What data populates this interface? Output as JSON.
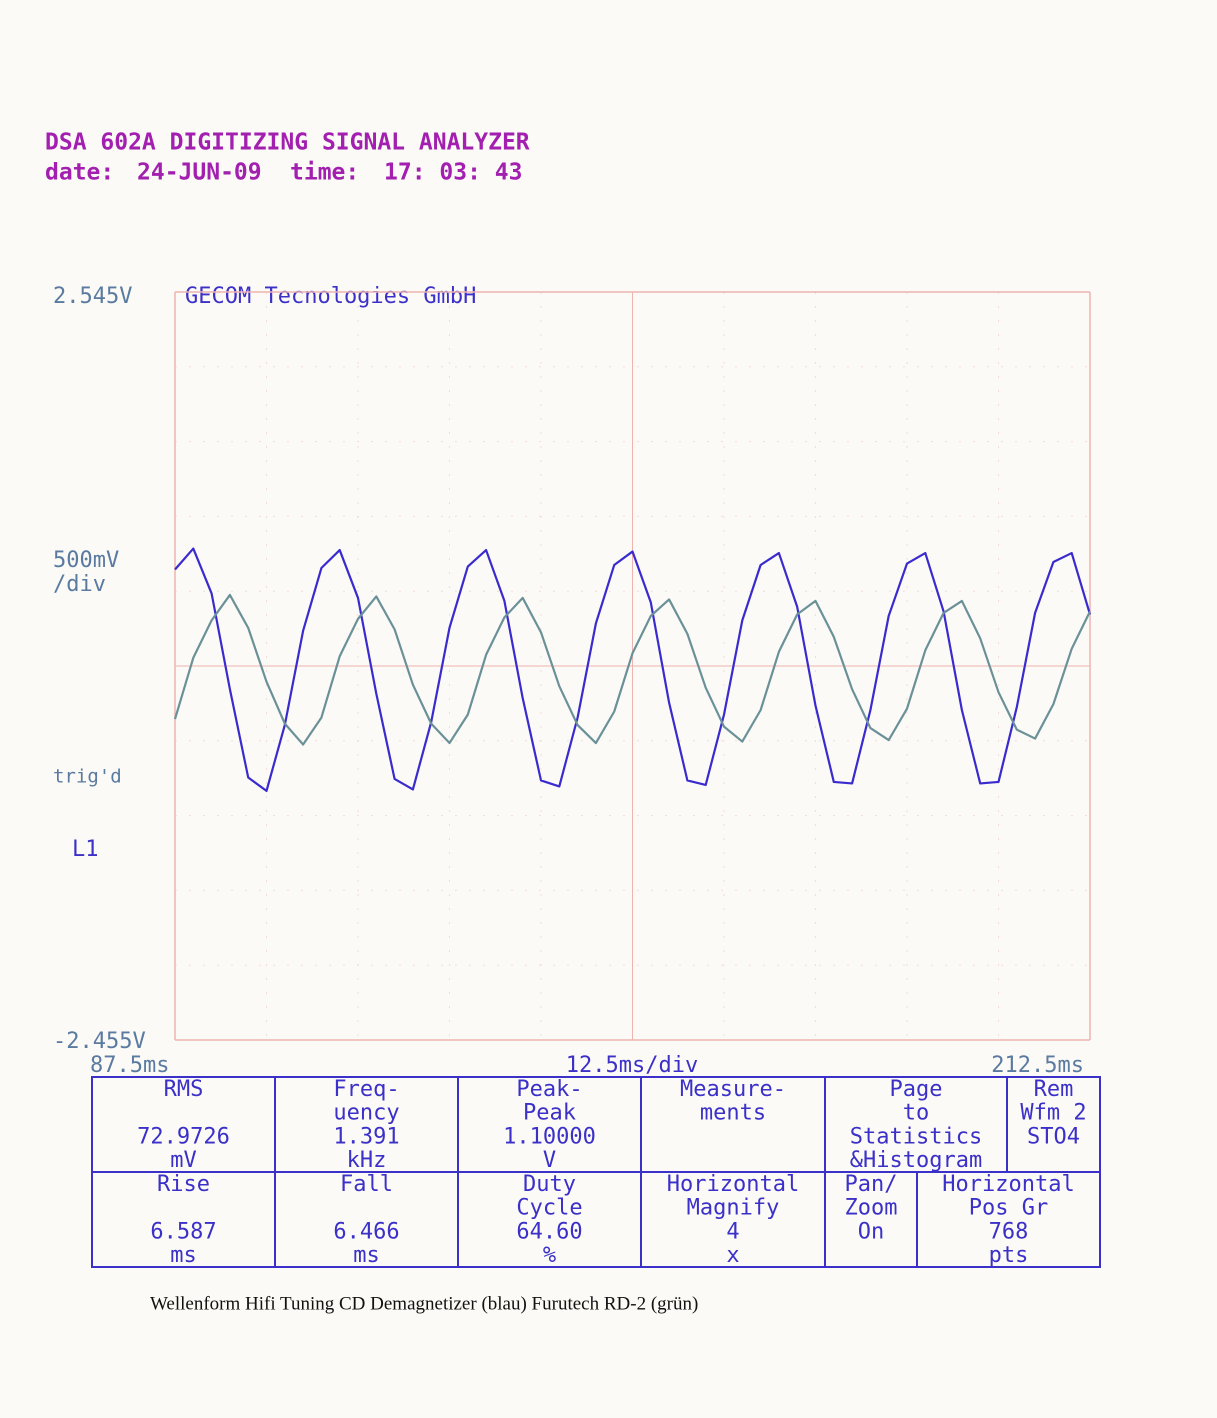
{
  "header": {
    "title": "DSA 602A DIGITIZING SIGNAL ANALYZER",
    "date_label": "date:",
    "date": "24-JUN-09",
    "time_label": "time:",
    "time": "17: 03: 43"
  },
  "chart_data": {
    "type": "line",
    "title": "GECOM Tecnologies GmbH",
    "vscale": [
      "500mV",
      "/div"
    ],
    "trigger": "trig'd",
    "channel": "L1",
    "hscale": "12.5ms/div",
    "x": [
      87.5,
      90,
      92.5,
      95,
      97.5,
      100,
      102.5,
      105,
      107.5,
      110,
      112.5,
      115,
      117.5,
      120,
      122.5,
      125,
      127.5,
      130,
      132.5,
      135,
      137.5,
      140,
      142.5,
      145,
      147.5,
      150,
      152.5,
      155,
      157.5,
      160,
      162.5,
      165,
      167.5,
      170,
      172.5,
      175,
      177.5,
      180,
      182.5,
      185,
      187.5,
      190,
      192.5,
      195,
      197.5,
      200,
      202.5,
      205,
      207.5,
      210,
      212.5
    ],
    "series": [
      {
        "name": "blau",
        "color": "#3a2bcf",
        "values": [
          0.69,
          0.83,
          0.53,
          -0.11,
          -0.7,
          -0.79,
          -0.35,
          0.28,
          0.7,
          0.82,
          0.5,
          -0.14,
          -0.71,
          -0.78,
          -0.33,
          0.3,
          0.71,
          0.82,
          0.48,
          -0.17,
          -0.72,
          -0.76,
          -0.3,
          0.33,
          0.72,
          0.81,
          0.47,
          -0.2,
          -0.72,
          -0.75,
          -0.28,
          0.35,
          0.72,
          0.8,
          0.44,
          -0.22,
          -0.73,
          -0.74,
          -0.25,
          0.38,
          0.73,
          0.8,
          0.41,
          -0.25,
          -0.74,
          -0.73,
          -0.23,
          0.4,
          0.74,
          0.8,
          0.39
        ]
      },
      {
        "name": "grün",
        "color": "#6b9198",
        "values": [
          -0.31,
          0.1,
          0.35,
          0.52,
          0.3,
          -0.06,
          -0.34,
          -0.48,
          -0.3,
          0.11,
          0.36,
          0.51,
          0.29,
          -0.08,
          -0.34,
          -0.47,
          -0.28,
          0.12,
          0.37,
          0.5,
          0.27,
          -0.09,
          -0.35,
          -0.47,
          -0.26,
          0.13,
          0.38,
          0.49,
          0.26,
          -0.1,
          -0.36,
          -0.46,
          -0.25,
          0.14,
          0.39,
          0.48,
          0.24,
          -0.11,
          -0.37,
          -0.45,
          -0.24,
          0.15,
          0.4,
          0.48,
          0.23,
          -0.13,
          -0.38,
          -0.44,
          -0.21,
          0.16,
          0.41
        ]
      }
    ],
    "xlim": [
      87.5,
      212.5
    ],
    "ylim": [
      -2.455,
      2.545
    ],
    "xticks": [
      {
        "value": 87.5,
        "label": "87.5ms"
      },
      {
        "value": 212.5,
        "label": "212.5ms"
      }
    ],
    "yticks": [
      {
        "value": 2.545,
        "label": "2.545V"
      },
      {
        "value": -2.455,
        "label": "-2.455V"
      }
    ],
    "grid": true
  },
  "table": {
    "rows": [
      [
        {
          "label": [
            "RMS"
          ],
          "value": "72.9726",
          "unit": "mV"
        },
        {
          "label": [
            "Freq-",
            "uency"
          ],
          "value": "1.391",
          "unit": "kHz"
        },
        {
          "label": [
            "Peak-",
            "Peak"
          ],
          "value": "1.10000",
          "unit": "V"
        },
        {
          "label": [
            "Measure-",
            "ments"
          ]
        },
        {
          "label": [
            "Page",
            "to",
            "Statistics",
            "&Histogram"
          ]
        },
        {
          "label": [
            "Rem",
            "Wfm 2",
            "STO4"
          ]
        }
      ],
      [
        {
          "label": [
            "Rise"
          ],
          "value": "6.587",
          "unit": "ms"
        },
        {
          "label": [
            "Fall"
          ],
          "value": "6.466",
          "unit": "ms"
        },
        {
          "label": [
            "Duty",
            "Cycle"
          ],
          "value": "64.60",
          "unit": "%"
        },
        {
          "label": [
            "Horizontal",
            "Magnify"
          ],
          "value": "4",
          "unit": "x"
        },
        {
          "label": [
            "Pan/",
            "Zoom",
            "On"
          ]
        },
        {
          "label": [
            "Horizontal",
            "Pos Gr"
          ],
          "value": "768",
          "unit": "pts"
        }
      ]
    ]
  },
  "caption": "Wellenform Hifi Tuning CD Demagnetizer (blau) Furutech RD-2 (grün)"
}
